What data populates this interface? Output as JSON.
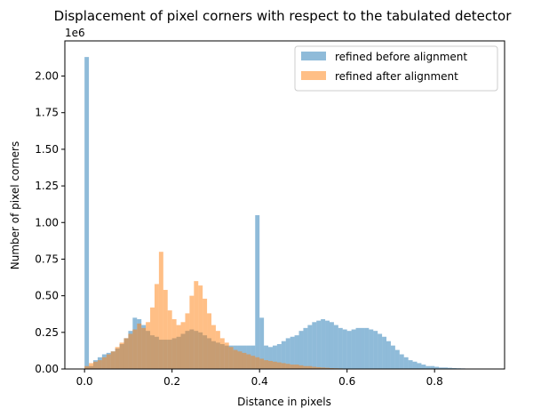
{
  "chart_data": {
    "type": "histogram",
    "title": "Displacement of pixel corners with respect to the tabulated detector",
    "xlabel": "Distance in pixels",
    "ylabel": "Number of pixel corners",
    "y_offset_label": "1e6",
    "xlim": [
      -0.045,
      0.96
    ],
    "ylim": [
      0,
      2.24
    ],
    "x_ticks": [
      0.0,
      0.2,
      0.4,
      0.6,
      0.8
    ],
    "x_tick_labels": [
      "0.0",
      "0.2",
      "0.4",
      "0.6",
      "0.8"
    ],
    "y_ticks": [
      0,
      0.25,
      0.5,
      0.75,
      1.0,
      1.25,
      1.5,
      1.75,
      2.0
    ],
    "y_tick_labels": [
      "0.00",
      "0.25",
      "0.50",
      "0.75",
      "1.00",
      "1.25",
      "1.50",
      "1.75",
      "2.00"
    ],
    "legend_position": "top-right",
    "bin_width": 0.01,
    "series": [
      {
        "name": "refined before alignment",
        "color": "#1f77b4",
        "alpha": 0.5,
        "x_start": 0.0,
        "values": [
          2.13,
          0.02,
          0.06,
          0.08,
          0.1,
          0.11,
          0.12,
          0.14,
          0.17,
          0.21,
          0.26,
          0.35,
          0.34,
          0.3,
          0.26,
          0.23,
          0.22,
          0.2,
          0.2,
          0.2,
          0.21,
          0.22,
          0.24,
          0.26,
          0.27,
          0.26,
          0.25,
          0.23,
          0.21,
          0.19,
          0.18,
          0.17,
          0.16,
          0.16,
          0.16,
          0.16,
          0.16,
          0.16,
          0.16,
          1.05,
          0.35,
          0.16,
          0.15,
          0.16,
          0.17,
          0.19,
          0.21,
          0.22,
          0.23,
          0.26,
          0.28,
          0.3,
          0.32,
          0.33,
          0.34,
          0.33,
          0.32,
          0.3,
          0.28,
          0.27,
          0.26,
          0.27,
          0.28,
          0.28,
          0.28,
          0.27,
          0.26,
          0.24,
          0.22,
          0.19,
          0.16,
          0.13,
          0.1,
          0.08,
          0.06,
          0.05,
          0.04,
          0.03,
          0.02,
          0.02,
          0.015,
          0.01,
          0.01,
          0.008,
          0.006,
          0.005,
          0.004,
          0.003,
          0.002,
          0.002,
          0.001,
          0.001,
          0.001,
          0.001
        ]
      },
      {
        "name": "refined after alignment",
        "color": "#ff7f0e",
        "alpha": 0.5,
        "x_start": 0.0,
        "values": [
          0.02,
          0.04,
          0.05,
          0.06,
          0.08,
          0.1,
          0.12,
          0.15,
          0.18,
          0.21,
          0.24,
          0.27,
          0.31,
          0.28,
          0.32,
          0.42,
          0.58,
          0.8,
          0.54,
          0.4,
          0.34,
          0.3,
          0.32,
          0.38,
          0.5,
          0.6,
          0.57,
          0.48,
          0.38,
          0.3,
          0.26,
          0.21,
          0.18,
          0.15,
          0.13,
          0.12,
          0.11,
          0.1,
          0.09,
          0.08,
          0.07,
          0.06,
          0.055,
          0.05,
          0.045,
          0.04,
          0.035,
          0.03,
          0.03,
          0.025,
          0.02,
          0.02,
          0.015,
          0.012,
          0.01,
          0.008,
          0.006,
          0.005,
          0.004,
          0.003,
          0.002,
          0.002,
          0.001,
          0.001,
          0.001
        ]
      }
    ]
  }
}
